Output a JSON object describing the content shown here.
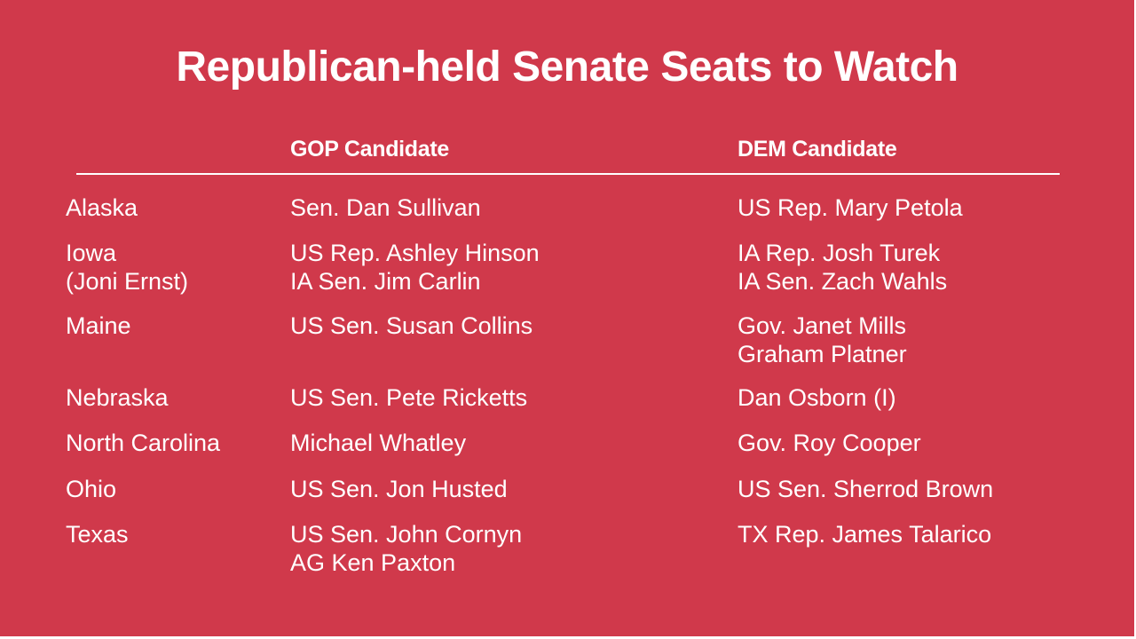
{
  "slide": {
    "title": "Republican-held Senate Seats to Watch",
    "headers": {
      "gop": "GOP Candidate",
      "dem": "DEM Candidate"
    },
    "rows": [
      {
        "state": [
          "Alaska"
        ],
        "gop": [
          "Sen. Dan Sullivan"
        ],
        "dem": [
          "US Rep. Mary Petola"
        ]
      },
      {
        "state": [
          "Iowa",
          "(Joni Ernst)"
        ],
        "gop": [
          "US Rep. Ashley Hinson",
          "IA Sen. Jim Carlin"
        ],
        "dem": [
          "IA Rep. Josh Turek",
          "IA Sen. Zach Wahls"
        ]
      },
      {
        "state": [
          "Maine"
        ],
        "gop": [
          "US Sen. Susan Collins"
        ],
        "dem": [
          "Gov. Janet Mills",
          "Graham Platner"
        ]
      },
      {
        "state": [
          "Nebraska"
        ],
        "gop": [
          "US Sen. Pete Ricketts"
        ],
        "dem": [
          "Dan Osborn (I)"
        ]
      },
      {
        "state": [
          "North Carolina"
        ],
        "gop": [
          "Michael Whatley"
        ],
        "dem": [
          "Gov. Roy Cooper"
        ]
      },
      {
        "state": [
          "Ohio"
        ],
        "gop": [
          "US Sen. Jon Husted"
        ],
        "dem": [
          "US Sen. Sherrod Brown"
        ]
      },
      {
        "state": [
          "Texas"
        ],
        "gop": [
          "US Sen. John Cornyn",
          "AG Ken Paxton"
        ],
        "dem": [
          "TX Rep. James Talarico"
        ]
      }
    ],
    "colors": {
      "background": "#d0394b",
      "text": "#ffffff"
    }
  }
}
